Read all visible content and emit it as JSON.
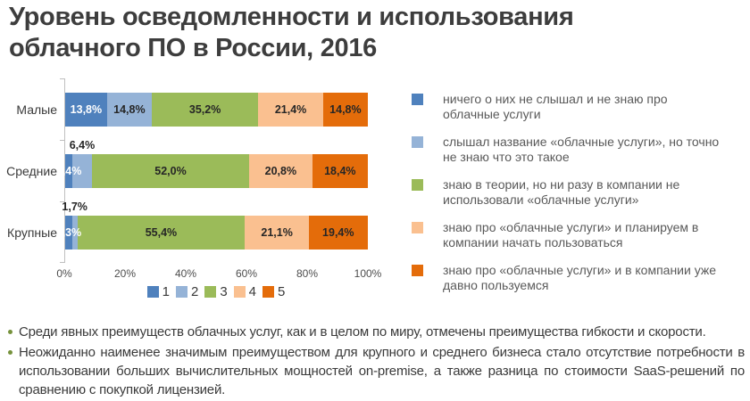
{
  "title": "Уровень осведомленности и использования\nоблачного ПО в России, 2016",
  "chart_data": {
    "type": "bar",
    "stacked": true,
    "orientation": "horizontal",
    "title": "Уровень осведомленности и использования облачного ПО в России, 2016",
    "categories": [
      "Малые",
      "Средние",
      "Крупные"
    ],
    "series": [
      {
        "name": "1",
        "color": "#4f81bd",
        "label_color": "#ffffff",
        "values": [
          13.8,
          2.4,
          2.3
        ],
        "labels": [
          "13,8%",
          "2,4%",
          "2,3%"
        ],
        "label_placement": [
          "inside",
          "inside",
          "inside"
        ]
      },
      {
        "name": "2",
        "color": "#95b3d7",
        "label_color": "#262626",
        "values": [
          14.8,
          6.4,
          1.7
        ],
        "labels": [
          "14,8%",
          "6,4%",
          "1,7%"
        ],
        "label_placement": [
          "inside",
          "above",
          "above"
        ]
      },
      {
        "name": "3",
        "color": "#9bbb59",
        "label_color": "#262626",
        "values": [
          35.2,
          52.0,
          55.4
        ],
        "labels": [
          "35,2%",
          "52,0%",
          "55,4%"
        ],
        "label_placement": [
          "inside",
          "inside",
          "inside"
        ]
      },
      {
        "name": "4",
        "color": "#fac090",
        "label_color": "#262626",
        "values": [
          21.4,
          20.8,
          21.1
        ],
        "labels": [
          "21,4%",
          "20,8%",
          "21,1%"
        ],
        "label_placement": [
          "inside",
          "inside",
          "inside"
        ]
      },
      {
        "name": "5",
        "color": "#e46c0a",
        "label_color": "#262626",
        "values": [
          14.8,
          18.4,
          19.4
        ],
        "labels": [
          "14,8%",
          "18,4%",
          "19,4%"
        ],
        "label_placement": [
          "inside",
          "inside",
          "inside"
        ]
      }
    ],
    "x_ticks": [
      "0%",
      "20%",
      "40%",
      "60%",
      "80%",
      "100%"
    ],
    "xlim": [
      0,
      100
    ],
    "grid": false,
    "legend": [
      "1",
      "2",
      "3",
      "4",
      "5"
    ],
    "legend_position": "bottom"
  },
  "side_legend": {
    "items": [
      {
        "color": "#4f81bd",
        "text": "ничего о них не слышал и не знаю про\nоблачные услуги"
      },
      {
        "color": "#95b3d7",
        "text": "слышал название «облачные услуги», но точно\nне знаю что это такое"
      },
      {
        "color": "#9bbb59",
        "text": "знаю в теории, но ни разу в компании не\nиспользовали «облачные услуги»"
      },
      {
        "color": "#fac090",
        "text": "знаю про «облачные услуги» и планируем в\nкомпании начать пользоваться"
      },
      {
        "color": "#e46c0a",
        "text": "знаю про «облачные услуги» и в компании уже\nдавно пользуемся"
      }
    ]
  },
  "notes": {
    "bullet_color": "#76923c",
    "items": [
      "Среди явных преимуществ облачных услуг, как и в целом по миру, отмечены преимущества гибкости и скорости.",
      "Неожиданно наименее значимым преимуществом для крупного и среднего бизнеса стало отсутствие потребности в использовании больших вычислительных мощностей on-premise, а также разница по стоимости SaaS-решений по сравнению с покупкой лицензией."
    ]
  }
}
